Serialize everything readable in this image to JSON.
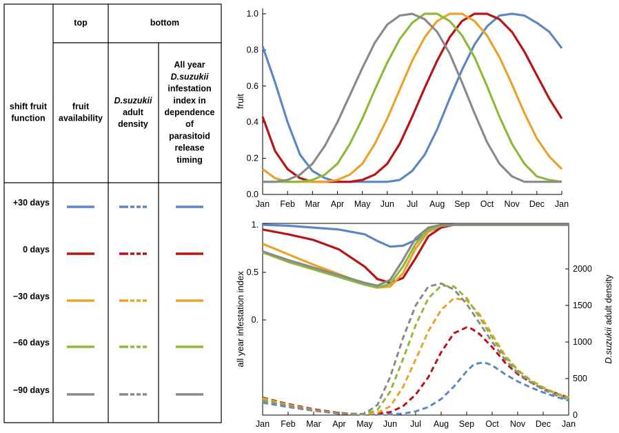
{
  "table": {
    "group_top": "top",
    "group_bottom": "bottom",
    "col0": [
      "shift fruit",
      "function"
    ],
    "col1": [
      "fruit",
      "availability"
    ],
    "col2": [
      {
        "text": "D.suzukii",
        "italic": true
      },
      {
        "text": "adult",
        "italic": false
      },
      {
        "text": "density",
        "italic": false
      }
    ],
    "col3": [
      {
        "text": "All year",
        "italic": false
      },
      {
        "text": "D.suzukii",
        "italic": true
      },
      {
        "text": "infestation",
        "italic": false
      },
      {
        "text": "index in",
        "italic": false
      },
      {
        "text": "dependence",
        "italic": false
      },
      {
        "text": "of",
        "italic": false
      },
      {
        "text": "parasitoid",
        "italic": false
      },
      {
        "text": "release",
        "italic": false
      },
      {
        "text": "timing",
        "italic": false
      }
    ],
    "rows": [
      {
        "label": "+30 days",
        "color": "#5b87c4"
      },
      {
        "label": "0 days",
        "color": "#b81414"
      },
      {
        "label": "−30 days",
        "color": "#eaa22a"
      },
      {
        "label": "−60 days",
        "color": "#8fb93a"
      },
      {
        "label": "−90 days",
        "color": "#8a8a8a"
      }
    ]
  },
  "chart_data": [
    {
      "type": "line",
      "ylabel": "fruit",
      "ylim": [
        0,
        1
      ],
      "yticks": [
        "0.0",
        "0.2",
        "0.4",
        "0.6",
        "0.8",
        "1.0"
      ],
      "xticks": [
        "Jan",
        "Feb",
        "Mar",
        "Apr",
        "May",
        "Jun",
        "Jul",
        "Aug",
        "Sep",
        "Oct",
        "Nov",
        "Dec",
        "Jan"
      ],
      "series": [
        {
          "color": "#5b87c4",
          "x": [
            1,
            1.5,
            2,
            2.5,
            3,
            3.5,
            4,
            4.5,
            5,
            5.5,
            6,
            6.5,
            7,
            7.5,
            8,
            8.5,
            9,
            9.5,
            10,
            10.5,
            11,
            11.5,
            12,
            12.5,
            13
          ],
          "y": [
            0.82,
            0.62,
            0.4,
            0.22,
            0.13,
            0.09,
            0.07,
            0.07,
            0.07,
            0.07,
            0.07,
            0.08,
            0.13,
            0.22,
            0.36,
            0.53,
            0.69,
            0.83,
            0.93,
            0.99,
            1.0,
            0.99,
            0.95,
            0.9,
            0.81
          ]
        },
        {
          "color": "#b81414",
          "x": [
            1,
            1.5,
            2,
            2.5,
            3,
            3.5,
            4,
            4.5,
            5,
            5.5,
            6,
            6.5,
            7,
            7.5,
            8,
            8.5,
            9,
            9.5,
            10,
            10.5,
            11,
            11.5,
            12,
            12.5,
            13
          ],
          "y": [
            0.43,
            0.24,
            0.14,
            0.09,
            0.07,
            0.07,
            0.07,
            0.07,
            0.08,
            0.11,
            0.17,
            0.28,
            0.43,
            0.59,
            0.74,
            0.87,
            0.96,
            1.0,
            1.0,
            0.97,
            0.9,
            0.79,
            0.66,
            0.53,
            0.42
          ]
        },
        {
          "color": "#eaa22a",
          "x": [
            1,
            1.5,
            2,
            2.5,
            3,
            3.5,
            4,
            4.5,
            5,
            5.5,
            6,
            6.5,
            7,
            7.5,
            8,
            8.5,
            9,
            9.5,
            10,
            10.5,
            11,
            11.5,
            12,
            12.5,
            13
          ],
          "y": [
            0.14,
            0.09,
            0.07,
            0.07,
            0.07,
            0.07,
            0.08,
            0.11,
            0.17,
            0.28,
            0.42,
            0.58,
            0.74,
            0.87,
            0.96,
            1.0,
            1.0,
            0.96,
            0.88,
            0.76,
            0.61,
            0.45,
            0.31,
            0.21,
            0.14
          ]
        },
        {
          "color": "#8fb93a",
          "x": [
            1,
            1.5,
            2,
            2.5,
            3,
            3.5,
            4,
            4.5,
            5,
            5.5,
            6,
            6.5,
            7,
            7.5,
            8,
            8.5,
            9,
            9.5,
            10,
            10.5,
            11,
            11.5,
            12,
            12.5,
            13
          ],
          "y": [
            0.07,
            0.07,
            0.07,
            0.07,
            0.08,
            0.11,
            0.17,
            0.28,
            0.42,
            0.58,
            0.73,
            0.86,
            0.95,
            1.0,
            1.0,
            0.96,
            0.88,
            0.76,
            0.6,
            0.43,
            0.28,
            0.17,
            0.1,
            0.08,
            0.07
          ]
        },
        {
          "color": "#8a8a8a",
          "x": [
            1,
            1.5,
            2,
            2.5,
            3,
            3.5,
            4,
            4.5,
            5,
            5.5,
            6,
            6.5,
            7,
            7.5,
            8,
            8.5,
            9,
            9.5,
            10,
            10.5,
            11,
            11.5,
            12,
            12.5,
            13
          ],
          "y": [
            0.07,
            0.07,
            0.08,
            0.11,
            0.17,
            0.27,
            0.4,
            0.55,
            0.7,
            0.84,
            0.94,
            0.99,
            1.0,
            0.97,
            0.9,
            0.78,
            0.62,
            0.45,
            0.29,
            0.17,
            0.1,
            0.07,
            0.07,
            0.07,
            0.07
          ]
        }
      ]
    },
    {
      "type": "line",
      "ylabel": "all year infestation index",
      "y2label_italic": "D.suzukii",
      "y2label_rest": " adult density",
      "yticks": [
        "1.",
        "0.5",
        "0."
      ],
      "y2ticks": [
        "0",
        "500",
        "1000",
        "1500",
        "2000"
      ],
      "y2lim": [
        0,
        2400
      ],
      "xticks": [
        "Jan",
        "Feb",
        "Mar",
        "Apr",
        "May",
        "Jun",
        "Jul",
        "Aug",
        "Sep",
        "Oct",
        "Nov",
        "Dec",
        "Jan"
      ],
      "index_series": [
        {
          "color": "#5b87c4",
          "x": [
            1,
            2,
            3,
            4,
            5,
            5.5,
            6,
            6.5,
            7,
            7.5,
            8,
            8.5,
            9,
            10,
            11,
            12,
            13
          ],
          "y": [
            1.0,
            0.99,
            0.97,
            0.95,
            0.9,
            0.83,
            0.77,
            0.78,
            0.84,
            0.93,
            0.98,
            1.0,
            1.0,
            1.0,
            1.0,
            1.0,
            1.0
          ]
        },
        {
          "color": "#b81414",
          "x": [
            1,
            2,
            3,
            4,
            5,
            5.5,
            6,
            6.5,
            7,
            7.5,
            8,
            8.5,
            9,
            10,
            11,
            12,
            13
          ],
          "y": [
            0.95,
            0.9,
            0.84,
            0.74,
            0.56,
            0.43,
            0.39,
            0.44,
            0.65,
            0.88,
            0.97,
            1.0,
            1.0,
            1.0,
            1.0,
            1.0,
            1.0
          ]
        },
        {
          "color": "#eaa22a",
          "x": [
            1,
            2,
            3,
            4,
            5,
            5.5,
            6,
            6.5,
            7,
            7.5,
            8,
            8.5,
            9,
            10,
            11,
            12,
            13
          ],
          "y": [
            0.8,
            0.69,
            0.58,
            0.48,
            0.38,
            0.34,
            0.35,
            0.49,
            0.75,
            0.93,
            0.99,
            1.0,
            1.0,
            1.0,
            1.0,
            1.0,
            1.0
          ]
        },
        {
          "color": "#8fb93a",
          "x": [
            1,
            2,
            3,
            4,
            5,
            5.5,
            6,
            6.5,
            7,
            7.5,
            8,
            8.5,
            9,
            10,
            11,
            12,
            13
          ],
          "y": [
            0.71,
            0.61,
            0.53,
            0.45,
            0.37,
            0.34,
            0.38,
            0.56,
            0.8,
            0.95,
            0.99,
            1.0,
            1.0,
            1.0,
            1.0,
            1.0,
            1.0
          ]
        },
        {
          "color": "#8a8a8a",
          "x": [
            1,
            2,
            3,
            4,
            5,
            5.5,
            6,
            6.5,
            7,
            7.5,
            8,
            8.5,
            9,
            10,
            11,
            12,
            13
          ],
          "y": [
            0.72,
            0.63,
            0.55,
            0.47,
            0.39,
            0.36,
            0.42,
            0.63,
            0.86,
            0.97,
            1.0,
            1.0,
            1.0,
            1.0,
            1.0,
            1.0,
            1.0
          ]
        }
      ],
      "density_series": [
        {
          "color": "#5b87c4",
          "x": [
            1,
            2,
            3,
            4,
            5,
            6,
            6.5,
            7,
            7.5,
            8,
            8.5,
            9,
            9.3,
            9.7,
            10,
            10.5,
            11,
            11.5,
            12,
            12.5,
            13
          ],
          "y": [
            170,
            110,
            60,
            25,
            8,
            10,
            20,
            50,
            110,
            220,
            390,
            600,
            700,
            720,
            680,
            560,
            460,
            380,
            310,
            250,
            200
          ]
        },
        {
          "color": "#b81414",
          "x": [
            1,
            2,
            3,
            4,
            5,
            6,
            6.5,
            7,
            7.5,
            8,
            8.5,
            9,
            9.2,
            9.5,
            10,
            10.5,
            11,
            11.5,
            12,
            12.5,
            13
          ],
          "y": [
            240,
            150,
            80,
            30,
            8,
            40,
            120,
            280,
            520,
            860,
            1120,
            1200,
            1180,
            1110,
            930,
            720,
            560,
            450,
            360,
            300,
            240
          ]
        },
        {
          "color": "#eaa22a",
          "x": [
            1,
            2,
            3,
            4,
            5,
            5.5,
            6,
            6.5,
            7,
            7.5,
            8,
            8.5,
            9,
            9.5,
            10,
            10.5,
            11,
            11.5,
            12,
            12.5,
            13
          ],
          "y": [
            230,
            140,
            70,
            25,
            10,
            30,
            120,
            380,
            760,
            1150,
            1440,
            1600,
            1570,
            1380,
            1100,
            820,
            620,
            480,
            380,
            300,
            240
          ]
        },
        {
          "color": "#8fb93a",
          "x": [
            1,
            2,
            3,
            4,
            5,
            5.5,
            6,
            6.5,
            7,
            7.5,
            8,
            8.5,
            9,
            9.5,
            10,
            10.5,
            11,
            11.5,
            12,
            12.5,
            13
          ],
          "y": [
            210,
            130,
            65,
            22,
            10,
            70,
            320,
            760,
            1230,
            1600,
            1770,
            1760,
            1600,
            1340,
            1060,
            800,
            610,
            470,
            370,
            290,
            230
          ]
        },
        {
          "color": "#8a8a8a",
          "x": [
            1,
            2,
            3,
            4,
            5,
            5.5,
            6,
            6.5,
            7,
            7.5,
            8,
            8.5,
            9,
            9.5,
            10,
            10.5,
            11,
            11.5,
            12,
            12.5,
            13
          ],
          "y": [
            190,
            120,
            60,
            20,
            15,
            140,
            520,
            1050,
            1500,
            1760,
            1800,
            1720,
            1520,
            1260,
            1000,
            760,
            580,
            450,
            350,
            270,
            210
          ]
        }
      ]
    }
  ]
}
